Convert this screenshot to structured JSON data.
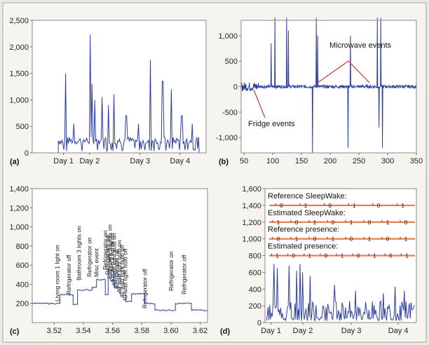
{
  "chart_data": [
    {
      "panel": "(a)",
      "type": "line",
      "ylim": [
        0,
        2500
      ],
      "yticks": [
        "0",
        "500",
        "1,000",
        "1,500",
        "2,000",
        "2,500"
      ],
      "xticks": [
        "Day 1",
        "Day 2",
        "Day 3",
        "Day 4"
      ],
      "baseline": 200,
      "spikes": [
        {
          "x": 0.19,
          "y": 1500
        },
        {
          "x": 0.24,
          "y": 550
        },
        {
          "x": 0.335,
          "y": 2230
        },
        {
          "x": 0.345,
          "y": 1300
        },
        {
          "x": 0.36,
          "y": 1000
        },
        {
          "x": 0.4,
          "y": 1050
        },
        {
          "x": 0.44,
          "y": 900
        },
        {
          "x": 0.47,
          "y": 1100
        },
        {
          "x": 0.54,
          "y": 700
        },
        {
          "x": 0.61,
          "y": 550
        },
        {
          "x": 0.68,
          "y": 1750
        },
        {
          "x": 0.75,
          "y": 1350
        },
        {
          "x": 0.8,
          "y": 1200
        },
        {
          "x": 0.86,
          "y": 700
        },
        {
          "x": 0.92,
          "y": 550
        }
      ]
    },
    {
      "panel": "(b)",
      "type": "line",
      "ylim": [
        -1300,
        1300
      ],
      "xlim": [
        45,
        350
      ],
      "yticks": [
        "-1,000",
        "-500",
        "0",
        "500",
        "1,000"
      ],
      "xticks": [
        "50",
        "100",
        "150",
        "200",
        "250",
        "300",
        "350"
      ],
      "spikes": [
        {
          "x": 97,
          "y": 850
        },
        {
          "x": 104,
          "y": 1350
        },
        {
          "x": 124,
          "y": 1350
        },
        {
          "x": 127,
          "y": 1100
        },
        {
          "x": 169,
          "y": -1300
        },
        {
          "x": 176,
          "y": 1350
        },
        {
          "x": 178,
          "y": 1000
        },
        {
          "x": 231,
          "y": -1200
        },
        {
          "x": 235,
          "y": 1000
        },
        {
          "x": 282,
          "y": 1350
        },
        {
          "x": 285,
          "y": -800
        },
        {
          "x": 288,
          "y": 1350
        },
        {
          "x": 291,
          "y": -1200
        }
      ],
      "annotations": [
        "Microwave events",
        "Fridge events"
      ]
    },
    {
      "panel": "(c)",
      "type": "line",
      "ylim": [
        0,
        1400
      ],
      "xlim": [
        3.505,
        3.625
      ],
      "yticks": [
        "200",
        "400",
        "600",
        "800",
        "1,000",
        "1,200",
        "1,400"
      ],
      "xticks": [
        "3.52",
        "3.54",
        "3.56",
        "3.58",
        "3.60",
        "3.62"
      ],
      "steps": [
        {
          "x": 3.505,
          "y": 200
        },
        {
          "x": 3.524,
          "y": 290
        },
        {
          "x": 3.533,
          "y": 190
        },
        {
          "x": 3.536,
          "y": 340
        },
        {
          "x": 3.546,
          "y": 370
        },
        {
          "x": 3.549,
          "y": 450
        },
        {
          "x": 3.555,
          "y": 290
        },
        {
          "x": 3.557,
          "y": 540
        },
        {
          "x": 3.561,
          "y": 370
        },
        {
          "x": 3.565,
          "y": 300
        },
        {
          "x": 3.569,
          "y": 220
        },
        {
          "x": 3.573,
          "y": 300
        },
        {
          "x": 3.582,
          "y": 200
        },
        {
          "x": 3.589,
          "y": 130
        },
        {
          "x": 3.603,
          "y": 200
        },
        {
          "x": 3.614,
          "y": 130
        },
        {
          "x": 3.625,
          "y": 130
        }
      ],
      "event_labels": [
        {
          "x": 3.522,
          "text": "Living room 1 light on"
        },
        {
          "x": 3.53,
          "text": "Refrigerator off"
        },
        {
          "x": 3.537,
          "text": "Bathroom 3 lights on"
        },
        {
          "x": 3.544,
          "text": "Refrigerator on"
        },
        {
          "x": 3.549,
          "text": "Misc event"
        },
        {
          "x": 3.555,
          "text": "Refrigerator on"
        },
        {
          "x": 3.5565,
          "text": "Refrigerator off"
        },
        {
          "x": 3.558,
          "text": "Bathroom 3 lights on"
        },
        {
          "x": 3.5595,
          "text": "Kitchen 2 lights on"
        },
        {
          "x": 3.561,
          "text": "40 watt light bulb on"
        },
        {
          "x": 3.5625,
          "text": "Refrigerator on"
        },
        {
          "x": 3.5645,
          "text": "40 watt light bulb on"
        },
        {
          "x": 3.5665,
          "text": "40 watt light bulb off"
        },
        {
          "x": 3.5685,
          "text": "40 watt light bulb off"
        },
        {
          "x": 3.582,
          "text": "Refrigerator off"
        },
        {
          "x": 3.6,
          "text": "Refrigerator on"
        },
        {
          "x": 3.609,
          "text": "Refrigerator off"
        }
      ]
    },
    {
      "panel": "(d)",
      "type": "line",
      "ylim": [
        0,
        1600
      ],
      "yticks": [
        "0",
        "200",
        "400",
        "600",
        "800",
        "1,000",
        "1,200",
        "1,400",
        "1,600"
      ],
      "xticks": [
        "Day 1",
        "Day 2",
        "Day 3",
        "Day 4"
      ],
      "sequences": [
        {
          "label": "Reference SleepWake:",
          "y": 1400,
          "values": [
            "0",
            "1",
            "0",
            "1",
            "0",
            "1"
          ]
        },
        {
          "label": "Estimated SleepWake:",
          "y": 1200,
          "values": [
            "1",
            "0",
            "1",
            "0",
            "1",
            "0",
            "1",
            "0"
          ]
        },
        {
          "label": "Reference presence:",
          "y": 1000,
          "values": [
            "0",
            "1",
            "0",
            "1",
            "0",
            "1",
            "0",
            "1"
          ]
        },
        {
          "label": "Estimated presence:",
          "y": 800,
          "values": [
            "1",
            "0",
            "1",
            "0",
            "1",
            "0",
            "1",
            "0",
            "1"
          ]
        }
      ]
    }
  ]
}
